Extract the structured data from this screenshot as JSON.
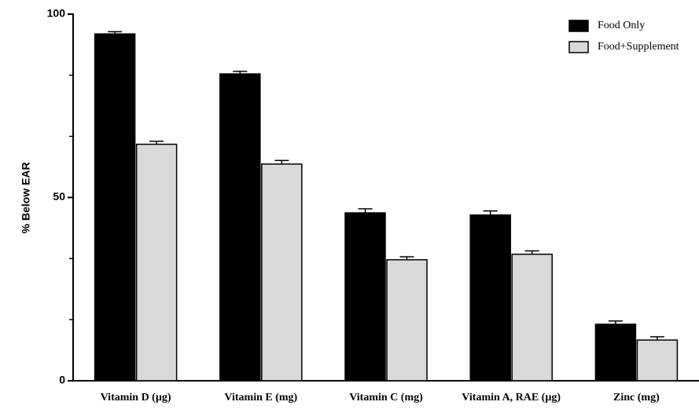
{
  "chart_data": {
    "type": "bar",
    "ylabel": "% Below EAR",
    "categories": [
      "Vitamin D (µg)",
      "Vitamin E (mg)",
      "Vitamin C (mg)",
      "Vitamin A, RAE (µg)",
      "Zinc (mg)"
    ],
    "series": [
      {
        "name": "Food Only",
        "color": "#000000",
        "values": [
          94.6,
          83.7,
          45.8,
          45.2,
          15.4
        ],
        "errors": [
          0.6,
          0.7,
          1.1,
          1.1,
          0.9
        ]
      },
      {
        "name": "Food+Supplement",
        "color": "#d9d9d9",
        "values": [
          64.5,
          59.1,
          33.0,
          34.5,
          11.1
        ],
        "errors": [
          0.8,
          1.0,
          0.8,
          0.9,
          0.9
        ]
      }
    ],
    "ylim": [
      0,
      100
    ],
    "yticks": [
      0,
      50,
      100
    ],
    "minor_yticks": [
      16.67,
      33.33,
      66.67,
      83.33
    ],
    "legend": "upper right"
  }
}
